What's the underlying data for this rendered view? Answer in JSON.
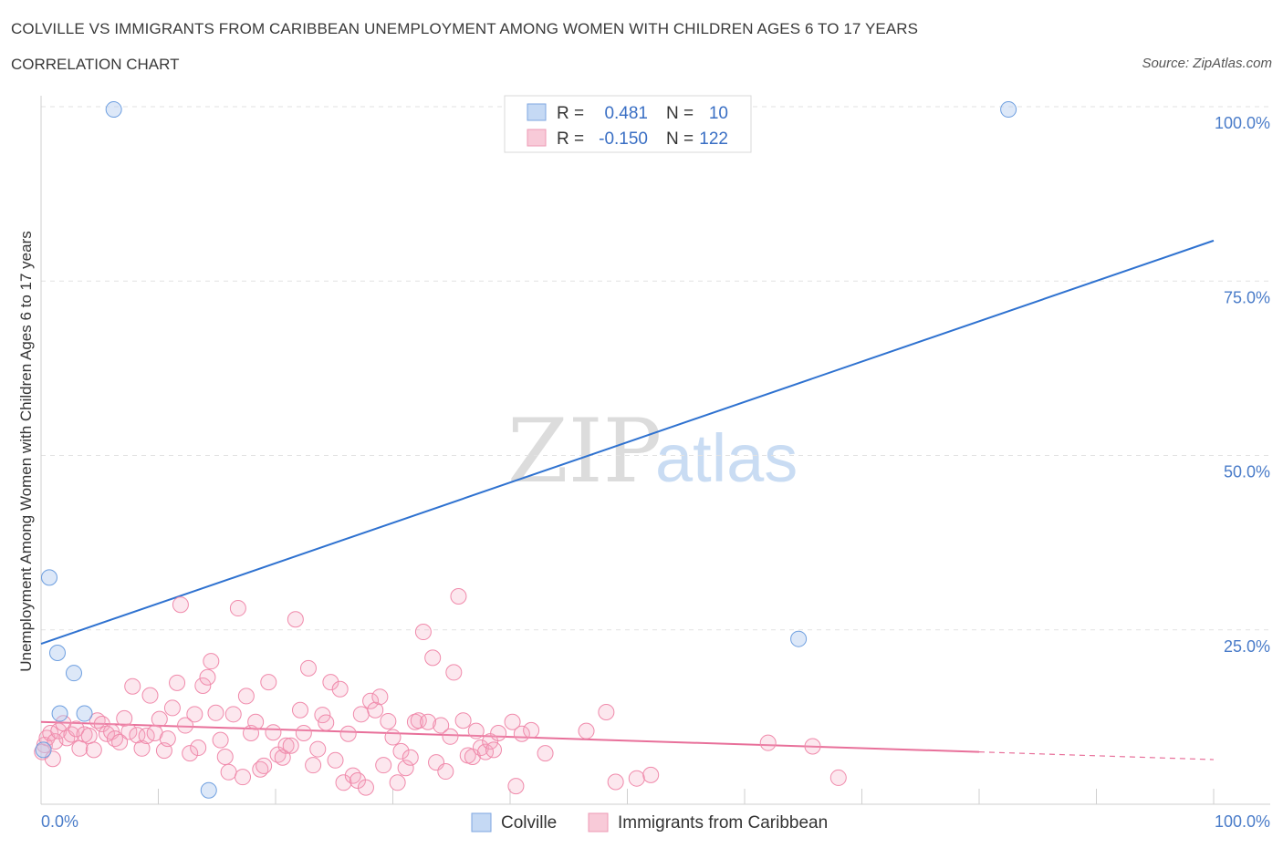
{
  "header": {
    "title": "COLVILLE VS IMMIGRANTS FROM CARIBBEAN UNEMPLOYMENT AMONG WOMEN WITH CHILDREN AGES 6 TO 17 YEARS",
    "subtitle": "CORRELATION CHART",
    "source": "Source: ZipAtlas.com"
  },
  "watermark": {
    "zip": "ZIP",
    "atlas": "atlas"
  },
  "legend": {
    "series": [
      {
        "r_label": "R =",
        "r_value": "0.481",
        "n_label": "N =",
        "n_value": "10"
      },
      {
        "r_label": "R =",
        "r_value": "-0.150",
        "n_label": "N =",
        "n_value": "122"
      }
    ]
  },
  "bottom_legend": [
    "Colville",
    "Immigrants from Caribbean"
  ],
  "chart_data": {
    "type": "scatter",
    "title": "COLVILLE VS IMMIGRANTS FROM CARIBBEAN UNEMPLOYMENT AMONG WOMEN WITH CHILDREN AGES 6 TO 17 YEARS",
    "xlabel": "",
    "ylabel": "Unemployment Among Women with Children Ages 6 to 17 years",
    "xlim": [
      0,
      100
    ],
    "ylim": [
      0,
      100
    ],
    "x_tick_labels": [
      "0.0%",
      "100.0%"
    ],
    "y_ticks": [
      25,
      50,
      75,
      100
    ],
    "y_tick_labels": [
      "25.0%",
      "50.0%",
      "75.0%",
      "100.0%"
    ],
    "grid": true,
    "legend_position": "top-center",
    "colors": {
      "colville": "#6e9fe0",
      "caribbean": "#f08aab",
      "colville_line": "#2f72d0",
      "caribbean_line": "#e8709a",
      "tick": "#4a7cc9"
    },
    "series": [
      {
        "name": "Colville",
        "r": 0.481,
        "n": 10,
        "points": [
          [
            6.2,
            99.6
          ],
          [
            82.5,
            99.6
          ],
          [
            0.7,
            32.5
          ],
          [
            1.4,
            21.7
          ],
          [
            2.8,
            18.8
          ],
          [
            1.6,
            13.0
          ],
          [
            3.7,
            13.0
          ],
          [
            64.6,
            23.7
          ],
          [
            14.3,
            2.0
          ],
          [
            0.2,
            7.8
          ]
        ],
        "trend": {
          "x0": 0,
          "y0": 23.0,
          "x1": 100,
          "y1": 80.8
        }
      },
      {
        "name": "Immigrants from Caribbean",
        "r": -0.15,
        "n": 122,
        "points": [
          [
            0.3,
            8.5
          ],
          [
            0.5,
            9.5
          ],
          [
            0.8,
            10.2
          ],
          [
            1.2,
            9.0
          ],
          [
            1.5,
            10.5
          ],
          [
            1.9,
            11.6
          ],
          [
            2.2,
            9.5
          ],
          [
            2.6,
            10.0
          ],
          [
            3.0,
            10.8
          ],
          [
            3.3,
            8.0
          ],
          [
            3.7,
            10.0
          ],
          [
            4.1,
            9.8
          ],
          [
            4.5,
            7.8
          ],
          [
            4.8,
            12.0
          ],
          [
            5.2,
            11.5
          ],
          [
            5.6,
            10.1
          ],
          [
            6.0,
            10.4
          ],
          [
            6.3,
            9.4
          ],
          [
            6.7,
            8.9
          ],
          [
            7.1,
            12.3
          ],
          [
            7.5,
            10.4
          ],
          [
            7.8,
            16.9
          ],
          [
            8.2,
            9.9
          ],
          [
            8.6,
            8.0
          ],
          [
            9.0,
            9.8
          ],
          [
            9.3,
            15.6
          ],
          [
            9.7,
            10.2
          ],
          [
            10.1,
            12.2
          ],
          [
            10.5,
            7.7
          ],
          [
            10.8,
            9.4
          ],
          [
            11.2,
            13.8
          ],
          [
            11.6,
            17.4
          ],
          [
            11.9,
            28.6
          ],
          [
            12.3,
            11.3
          ],
          [
            12.7,
            7.3
          ],
          [
            13.1,
            12.9
          ],
          [
            13.4,
            8.1
          ],
          [
            13.8,
            17.0
          ],
          [
            14.2,
            18.2
          ],
          [
            14.5,
            20.5
          ],
          [
            14.9,
            13.1
          ],
          [
            15.3,
            9.2
          ],
          [
            15.7,
            6.8
          ],
          [
            16.0,
            4.6
          ],
          [
            16.4,
            12.9
          ],
          [
            16.8,
            28.1
          ],
          [
            17.2,
            3.9
          ],
          [
            17.5,
            15.5
          ],
          [
            17.9,
            10.2
          ],
          [
            18.3,
            11.8
          ],
          [
            18.7,
            5.0
          ],
          [
            19.0,
            5.5
          ],
          [
            19.4,
            17.5
          ],
          [
            19.8,
            10.3
          ],
          [
            20.2,
            7.1
          ],
          [
            20.6,
            6.7
          ],
          [
            20.9,
            8.4
          ],
          [
            21.3,
            8.4
          ],
          [
            21.7,
            26.5
          ],
          [
            22.1,
            13.5
          ],
          [
            22.4,
            10.2
          ],
          [
            22.8,
            19.5
          ],
          [
            23.2,
            5.6
          ],
          [
            23.6,
            7.9
          ],
          [
            24.0,
            12.8
          ],
          [
            24.3,
            11.7
          ],
          [
            24.7,
            17.5
          ],
          [
            25.1,
            6.3
          ],
          [
            25.5,
            16.5
          ],
          [
            25.8,
            3.1
          ],
          [
            26.2,
            10.1
          ],
          [
            26.6,
            4.1
          ],
          [
            27.0,
            3.4
          ],
          [
            27.3,
            12.9
          ],
          [
            27.7,
            2.4
          ],
          [
            28.1,
            14.8
          ],
          [
            28.5,
            13.5
          ],
          [
            28.9,
            15.4
          ],
          [
            29.2,
            5.6
          ],
          [
            29.6,
            11.9
          ],
          [
            30.0,
            9.6
          ],
          [
            30.4,
            3.1
          ],
          [
            30.7,
            7.6
          ],
          [
            31.1,
            5.2
          ],
          [
            31.5,
            6.7
          ],
          [
            31.9,
            11.8
          ],
          [
            32.2,
            12.0
          ],
          [
            32.6,
            24.7
          ],
          [
            33.0,
            11.8
          ],
          [
            33.4,
            21.0
          ],
          [
            33.7,
            6.0
          ],
          [
            34.1,
            11.3
          ],
          [
            34.5,
            4.7
          ],
          [
            34.9,
            9.7
          ],
          [
            35.2,
            18.9
          ],
          [
            35.6,
            29.8
          ],
          [
            36.0,
            12.0
          ],
          [
            36.4,
            7.0
          ],
          [
            36.8,
            6.8
          ],
          [
            37.1,
            10.5
          ],
          [
            37.5,
            8.1
          ],
          [
            37.9,
            7.5
          ],
          [
            38.3,
            9.0
          ],
          [
            38.6,
            7.8
          ],
          [
            39.0,
            10.2
          ],
          [
            40.2,
            11.8
          ],
          [
            40.5,
            2.6
          ],
          [
            41.0,
            10.1
          ],
          [
            41.8,
            10.6
          ],
          [
            43.0,
            7.3
          ],
          [
            46.5,
            10.5
          ],
          [
            48.2,
            13.2
          ],
          [
            49.0,
            3.2
          ],
          [
            50.8,
            3.7
          ],
          [
            52.0,
            4.2
          ],
          [
            62.0,
            8.8
          ],
          [
            65.8,
            8.3
          ],
          [
            68.0,
            3.8
          ],
          [
            0.1,
            7.5
          ],
          [
            1.0,
            6.5
          ]
        ],
        "trend": {
          "x0": 0,
          "y0": 11.8,
          "x1": 80,
          "y1": 7.5
        },
        "trend_dashed": {
          "x0": 80,
          "y0": 7.5,
          "x1": 100,
          "y1": 6.4
        }
      }
    ]
  }
}
